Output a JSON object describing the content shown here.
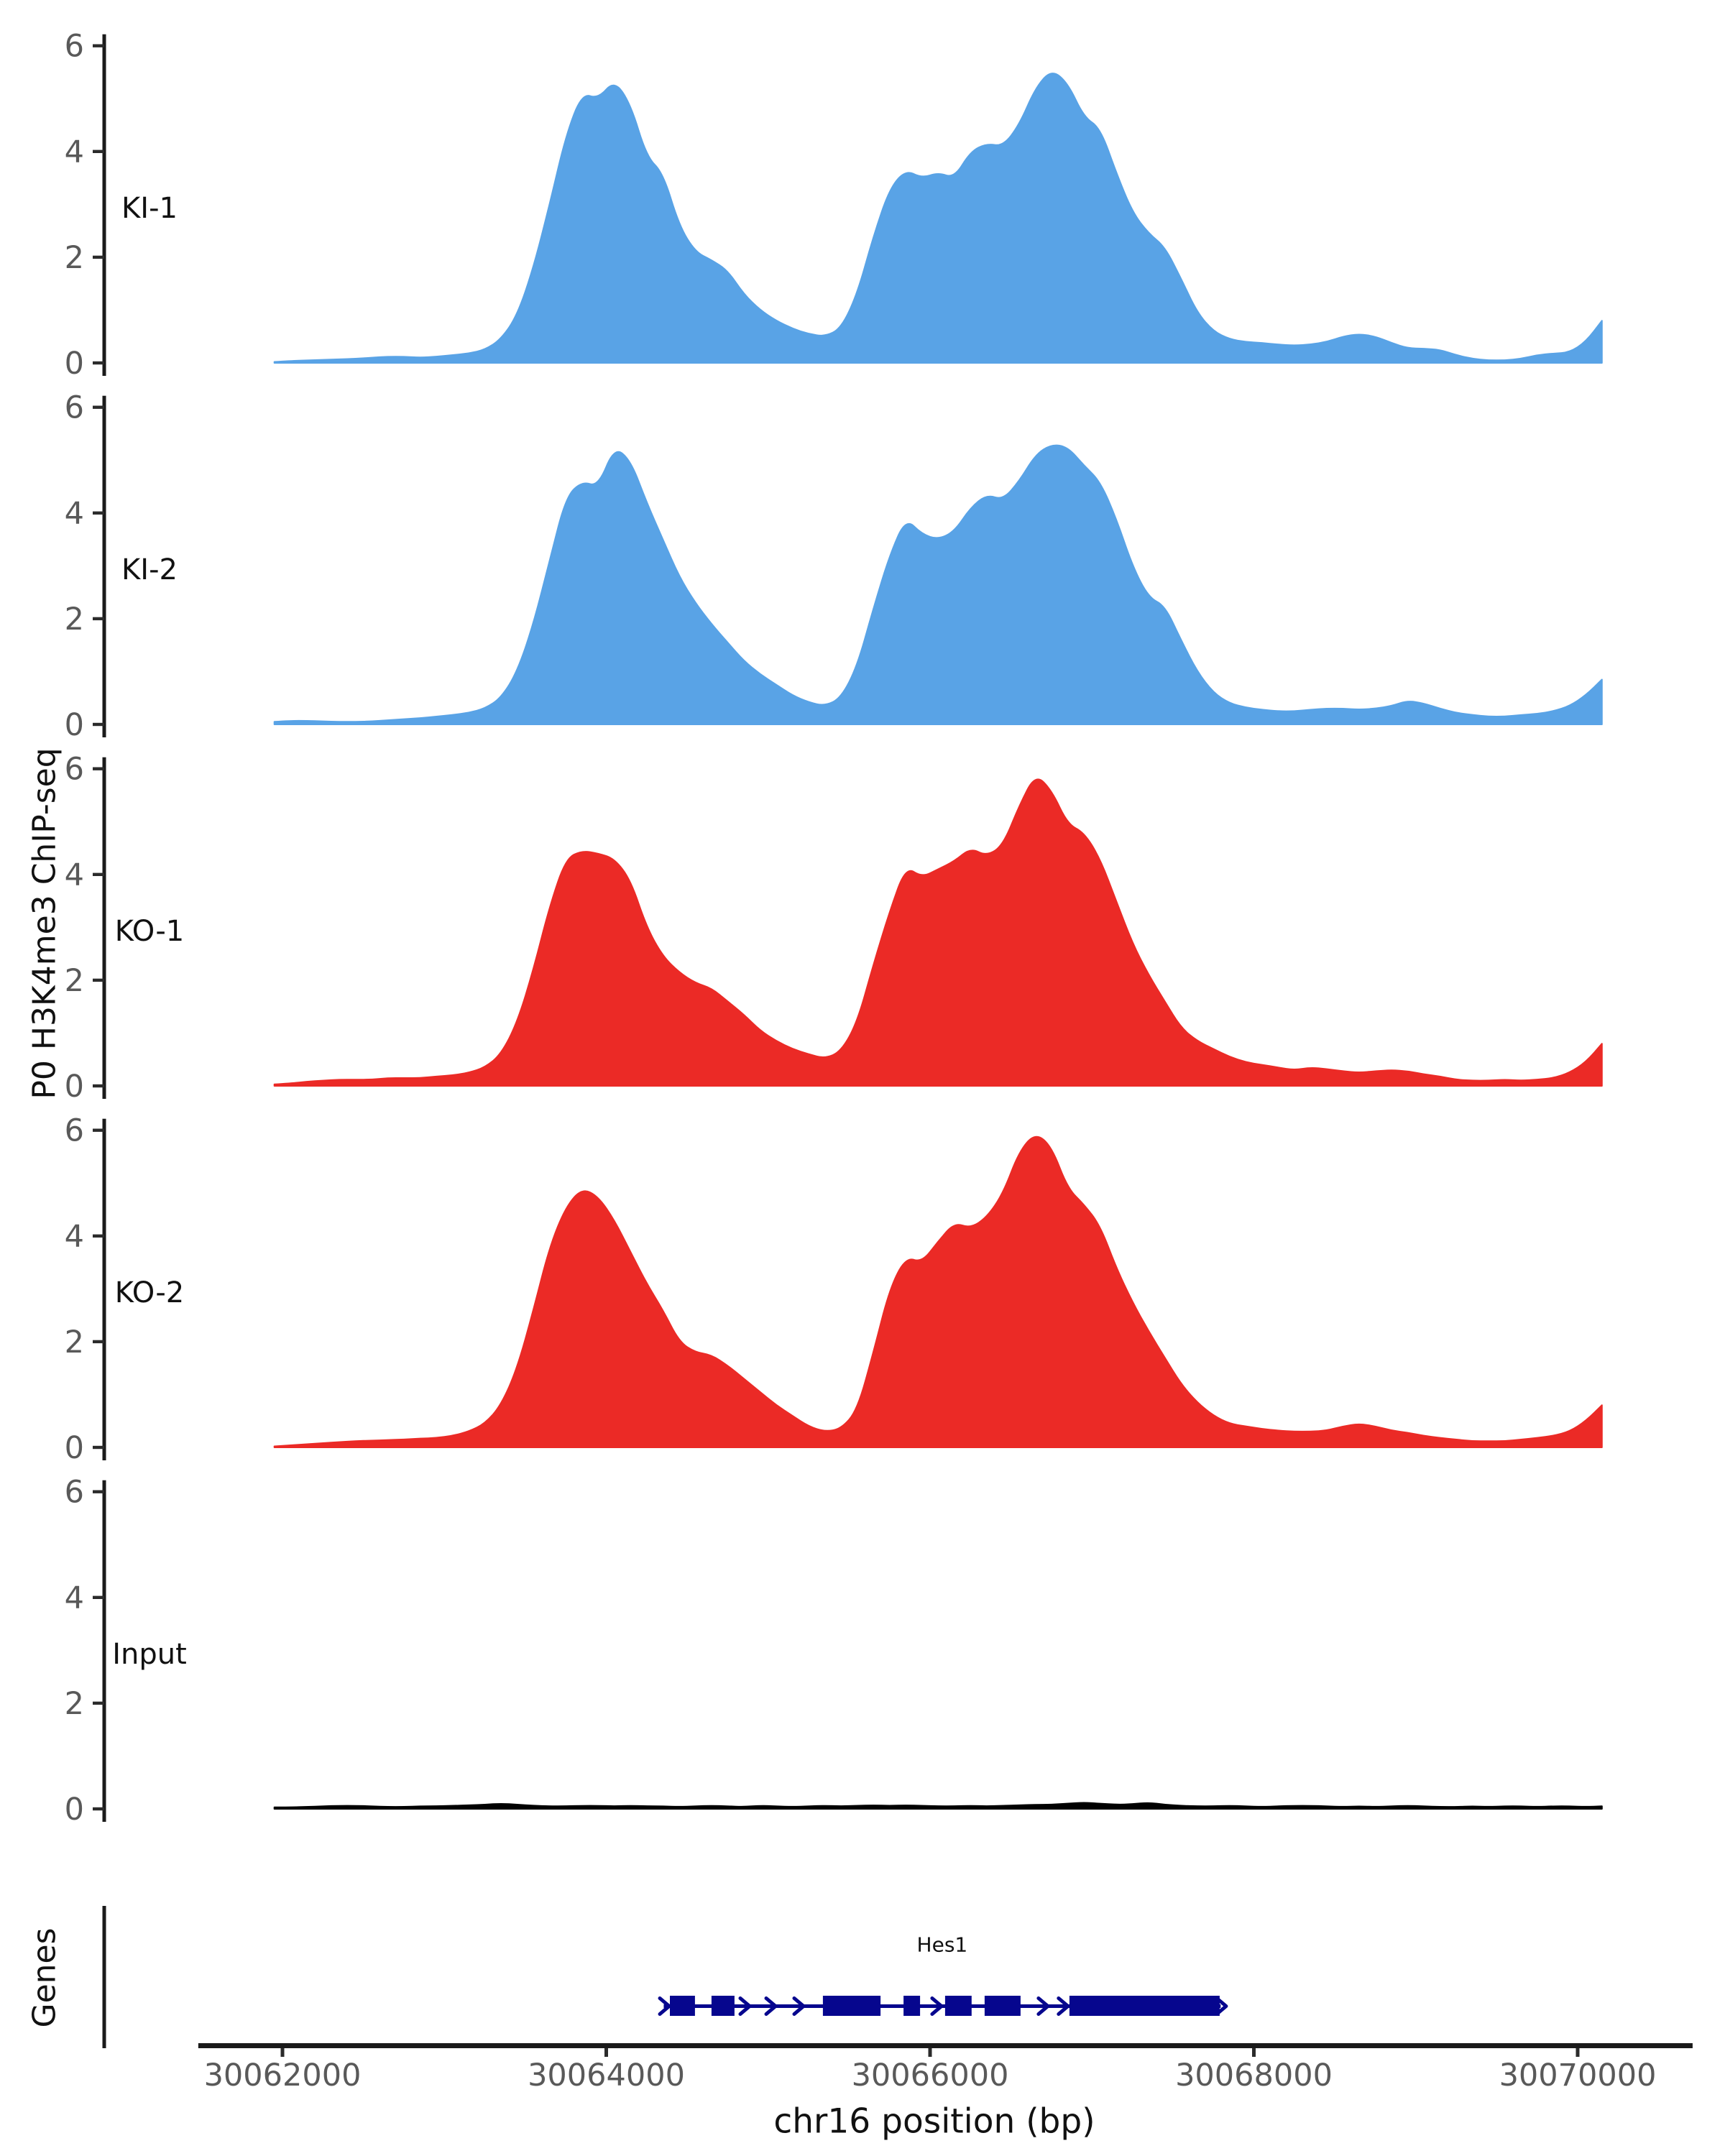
{
  "figure": {
    "ylabel": "P0 H3K4me3 ChIP-seq",
    "xlabel": "chr16 position (bp)",
    "genes_panel_label": "Genes",
    "gene_name": "Hes1"
  },
  "colors": {
    "ki_fill": "#59A3E6",
    "ko_fill": "#EB2A26",
    "input_fill": "#000000",
    "gene_model": "#06068E",
    "axis_line": "#1a1a1a",
    "tick_mark": "#2b2b2b",
    "tick_label": "#595959",
    "text": "#111111"
  },
  "chart_data": {
    "type": "area",
    "title": "",
    "xlabel": "chr16 position (bp)",
    "ylabel": "P0 H3K4me3 ChIP-seq",
    "xlim": [
      30061480,
      30070710
    ],
    "ylim": [
      0,
      6
    ],
    "x_axis": {
      "label": "chr16 position (bp)",
      "ticks": [
        30062000,
        30064000,
        30066000,
        30068000,
        30070000
      ]
    },
    "y_axis": {
      "ticks": [
        0,
        2,
        4,
        6
      ]
    },
    "x_start": 30061950,
    "x_step": 100,
    "series": [
      {
        "label": "KI-1",
        "color": "#59A3E6",
        "values": [
          0.02,
          0.04,
          0.05,
          0.06,
          0.07,
          0.08,
          0.1,
          0.12,
          0.12,
          0.1,
          0.12,
          0.15,
          0.18,
          0.25,
          0.45,
          0.9,
          1.8,
          3.0,
          4.3,
          5.1,
          5.0,
          5.35,
          4.9,
          3.9,
          3.6,
          2.6,
          2.1,
          1.95,
          1.75,
          1.3,
          1.0,
          0.8,
          0.65,
          0.55,
          0.5,
          0.65,
          1.3,
          2.4,
          3.3,
          3.65,
          3.5,
          3.6,
          3.5,
          4.0,
          4.15,
          4.1,
          4.5,
          5.2,
          5.55,
          5.3,
          4.65,
          4.45,
          3.6,
          2.85,
          2.45,
          2.2,
          1.6,
          0.95,
          0.6,
          0.45,
          0.4,
          0.38,
          0.35,
          0.33,
          0.35,
          0.4,
          0.5,
          0.55,
          0.5,
          0.38,
          0.28,
          0.27,
          0.25,
          0.15,
          0.08,
          0.05,
          0.05,
          0.08,
          0.15,
          0.18,
          0.2,
          0.4,
          0.8
        ]
      },
      {
        "label": "KI-2",
        "color": "#59A3E6",
        "values": [
          0.05,
          0.07,
          0.07,
          0.06,
          0.05,
          0.05,
          0.06,
          0.08,
          0.1,
          0.12,
          0.15,
          0.18,
          0.22,
          0.3,
          0.5,
          1.0,
          1.9,
          3.1,
          4.3,
          4.6,
          4.5,
          5.25,
          5.0,
          4.2,
          3.5,
          2.8,
          2.3,
          1.9,
          1.55,
          1.2,
          0.95,
          0.75,
          0.55,
          0.42,
          0.35,
          0.5,
          1.1,
          2.2,
          3.2,
          3.9,
          3.6,
          3.5,
          3.65,
          4.1,
          4.35,
          4.25,
          4.6,
          5.1,
          5.3,
          5.25,
          4.9,
          4.6,
          3.9,
          3.0,
          2.4,
          2.25,
          1.6,
          1.0,
          0.6,
          0.4,
          0.32,
          0.28,
          0.25,
          0.25,
          0.28,
          0.3,
          0.3,
          0.28,
          0.3,
          0.35,
          0.45,
          0.4,
          0.3,
          0.22,
          0.18,
          0.15,
          0.15,
          0.18,
          0.2,
          0.25,
          0.35,
          0.55,
          0.85
        ]
      },
      {
        "label": "KO-1",
        "color": "#EB2A26",
        "values": [
          0.03,
          0.05,
          0.08,
          0.1,
          0.12,
          0.12,
          0.12,
          0.15,
          0.15,
          0.15,
          0.18,
          0.2,
          0.25,
          0.35,
          0.6,
          1.2,
          2.2,
          3.4,
          4.3,
          4.45,
          4.4,
          4.3,
          3.9,
          3.0,
          2.45,
          2.15,
          1.95,
          1.85,
          1.6,
          1.35,
          1.05,
          0.85,
          0.7,
          0.6,
          0.52,
          0.65,
          1.2,
          2.3,
          3.3,
          4.15,
          3.95,
          4.1,
          4.25,
          4.5,
          4.35,
          4.55,
          5.3,
          5.9,
          5.6,
          4.95,
          4.8,
          4.3,
          3.5,
          2.7,
          2.1,
          1.6,
          1.1,
          0.85,
          0.7,
          0.55,
          0.45,
          0.4,
          0.35,
          0.3,
          0.35,
          0.32,
          0.28,
          0.25,
          0.28,
          0.3,
          0.28,
          0.22,
          0.18,
          0.12,
          0.1,
          0.1,
          0.12,
          0.1,
          0.12,
          0.15,
          0.25,
          0.45,
          0.8
        ]
      },
      {
        "label": "KO-2",
        "color": "#EB2A26",
        "values": [
          0.02,
          0.04,
          0.06,
          0.08,
          0.1,
          0.12,
          0.13,
          0.14,
          0.15,
          0.17,
          0.18,
          0.22,
          0.3,
          0.45,
          0.8,
          1.5,
          2.6,
          3.8,
          4.55,
          4.9,
          4.75,
          4.3,
          3.7,
          3.1,
          2.6,
          2.0,
          1.8,
          1.75,
          1.55,
          1.3,
          1.05,
          0.8,
          0.6,
          0.4,
          0.3,
          0.35,
          0.7,
          1.8,
          3.0,
          3.6,
          3.5,
          3.9,
          4.25,
          4.15,
          4.35,
          4.8,
          5.6,
          5.95,
          5.7,
          4.9,
          4.6,
          4.2,
          3.4,
          2.75,
          2.2,
          1.7,
          1.2,
          0.85,
          0.6,
          0.45,
          0.4,
          0.35,
          0.32,
          0.3,
          0.3,
          0.32,
          0.4,
          0.45,
          0.4,
          0.32,
          0.28,
          0.22,
          0.18,
          0.15,
          0.12,
          0.12,
          0.12,
          0.15,
          0.18,
          0.22,
          0.3,
          0.5,
          0.8
        ]
      },
      {
        "label": "Input",
        "color": "#000000",
        "values": [
          0.03,
          0.03,
          0.04,
          0.05,
          0.06,
          0.06,
          0.05,
          0.04,
          0.04,
          0.05,
          0.05,
          0.06,
          0.07,
          0.08,
          0.1,
          0.08,
          0.06,
          0.05,
          0.05,
          0.06,
          0.06,
          0.05,
          0.06,
          0.05,
          0.05,
          0.04,
          0.05,
          0.06,
          0.05,
          0.04,
          0.06,
          0.05,
          0.04,
          0.05,
          0.06,
          0.05,
          0.06,
          0.07,
          0.06,
          0.07,
          0.06,
          0.05,
          0.05,
          0.06,
          0.05,
          0.06,
          0.07,
          0.08,
          0.08,
          0.1,
          0.12,
          0.1,
          0.08,
          0.09,
          0.12,
          0.08,
          0.06,
          0.05,
          0.05,
          0.06,
          0.05,
          0.04,
          0.05,
          0.06,
          0.06,
          0.05,
          0.04,
          0.05,
          0.04,
          0.05,
          0.06,
          0.05,
          0.04,
          0.04,
          0.05,
          0.04,
          0.05,
          0.05,
          0.04,
          0.05,
          0.05,
          0.04,
          0.05
        ]
      }
    ],
    "gene_track": {
      "label": "Genes",
      "gene": {
        "name": "Hes1",
        "strand": "+",
        "start": 30064355,
        "end": 30067795,
        "exons": [
          [
            30064393,
            30064548
          ],
          [
            30064650,
            30064792
          ],
          [
            30065338,
            30065694
          ],
          [
            30065836,
            30065938
          ],
          [
            30066093,
            30066257
          ],
          [
            30066337,
            30066559
          ],
          [
            30066861,
            30067789
          ]
        ],
        "chevrons": [
          30064362,
          30064859,
          30065019,
          30065192,
          30066044,
          30066701,
          30066825,
          30067802
        ]
      }
    }
  }
}
